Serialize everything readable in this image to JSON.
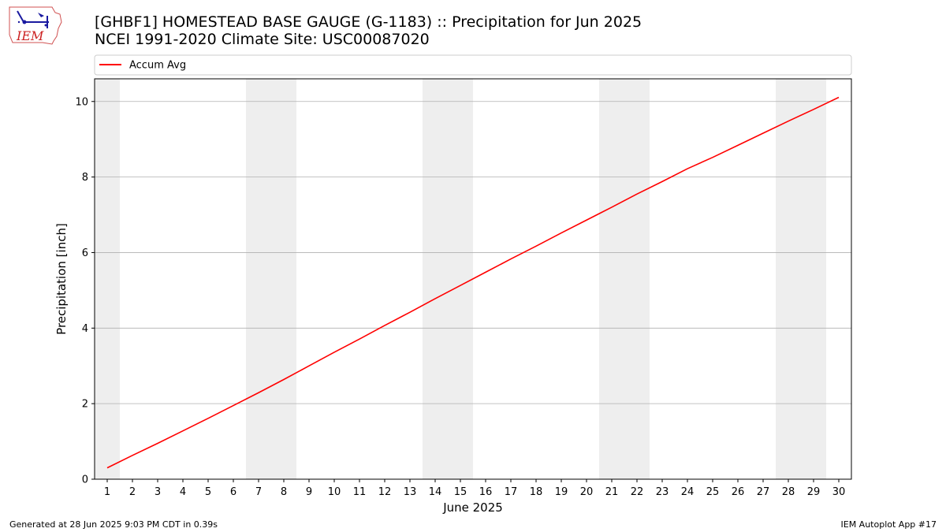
{
  "logo": {
    "text": "IEM"
  },
  "title_line1": "[GHBF1] HOMESTEAD BASE GAUGE (G-1183) :: Precipitation for Jun 2025",
  "title_line2": "NCEI 1991-2020 Climate Site: USC00087020",
  "footer": {
    "left": "Generated at 28 Jun 2025 9:03 PM CDT in 0.39s",
    "right": "IEM Autoplot App #17"
  },
  "colors": {
    "series": "#ff0000",
    "weekend": "#eeeeee",
    "grid": "#b0b0b0"
  },
  "chart_data": {
    "type": "line",
    "xlabel": "June 2025",
    "ylabel": "Precipitation [inch]",
    "xlim": [
      0.5,
      30.5
    ],
    "ylim": [
      0,
      10.6
    ],
    "yticks": [
      0,
      2,
      4,
      6,
      8,
      10
    ],
    "xticks": [
      1,
      2,
      3,
      4,
      5,
      6,
      7,
      8,
      9,
      10,
      11,
      12,
      13,
      14,
      15,
      16,
      17,
      18,
      19,
      20,
      21,
      22,
      23,
      24,
      25,
      26,
      27,
      28,
      29,
      30
    ],
    "grid": "y",
    "legend": {
      "position": "top",
      "entries": [
        "Accum Avg"
      ]
    },
    "shaded_days": [
      [
        0.5,
        1.5
      ],
      [
        6.5,
        8.5
      ],
      [
        13.5,
        15.5
      ],
      [
        20.5,
        22.5
      ],
      [
        27.5,
        29.5
      ]
    ],
    "series": [
      {
        "name": "Accum Avg",
        "x": [
          1,
          2,
          3,
          4,
          5,
          6,
          7,
          8,
          9,
          10,
          11,
          12,
          13,
          14,
          15,
          16,
          17,
          18,
          19,
          20,
          21,
          22,
          23,
          24,
          25,
          26,
          27,
          28,
          29,
          30
        ],
        "y": [
          0.3,
          0.63,
          0.95,
          1.28,
          1.61,
          1.95,
          2.29,
          2.64,
          3.0,
          3.36,
          3.71,
          4.07,
          4.42,
          4.78,
          5.13,
          5.48,
          5.83,
          6.17,
          6.52,
          6.86,
          7.2,
          7.55,
          7.88,
          8.22,
          8.52,
          8.84,
          9.16,
          9.48,
          9.79,
          10.11
        ]
      }
    ]
  }
}
